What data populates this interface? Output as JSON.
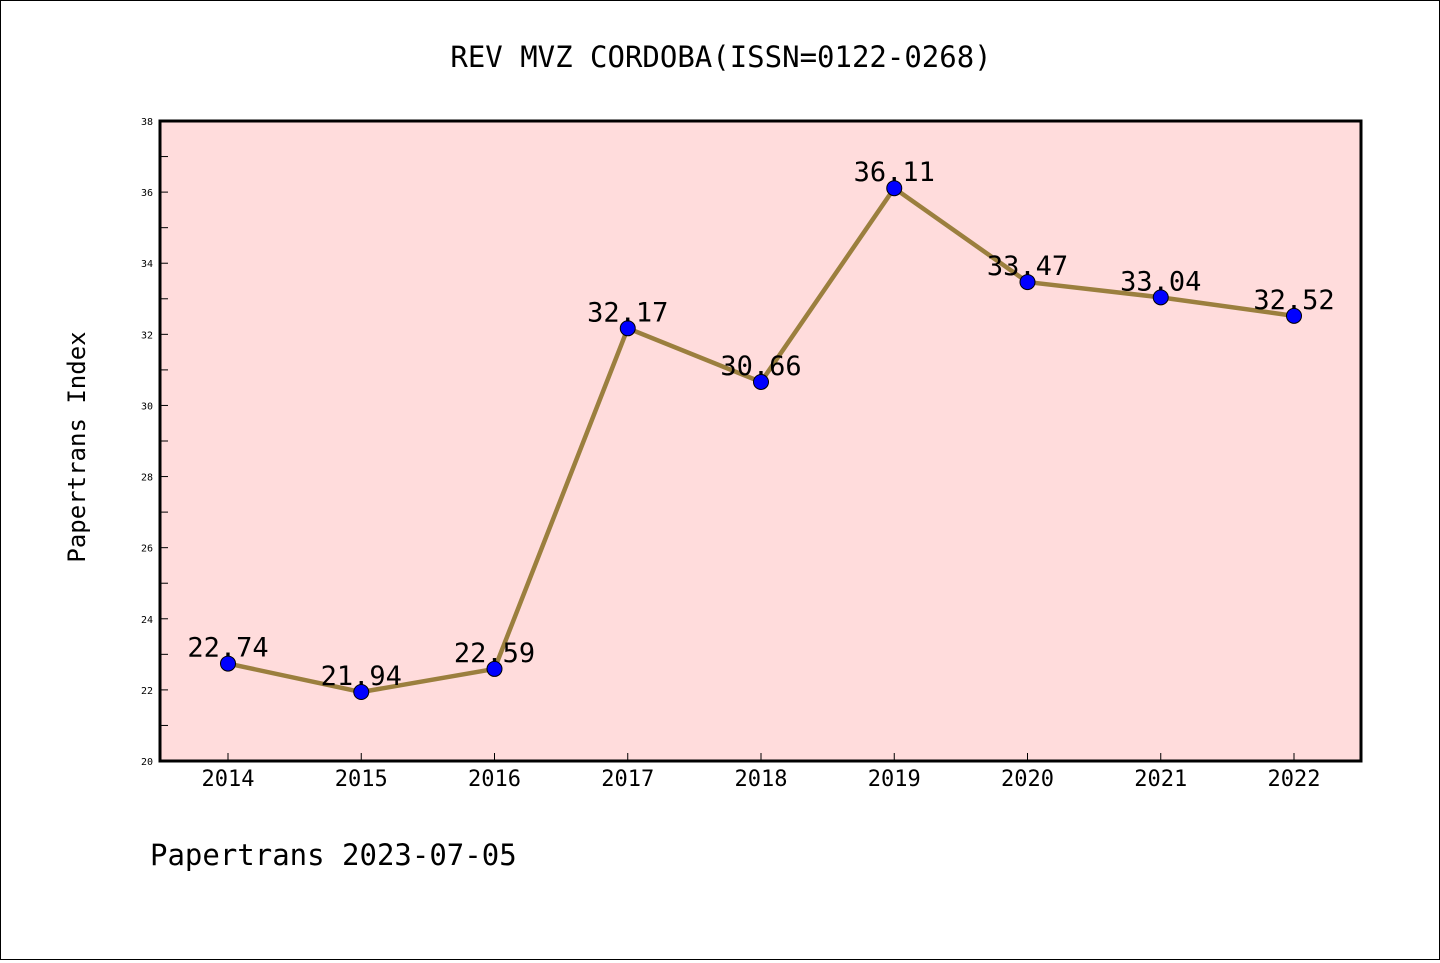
{
  "chart_data": {
    "type": "line",
    "title": "REV MVZ CORDOBA(ISSN=0122-0268)",
    "ylabel": "Papertrans Index",
    "xlabel": "",
    "footer": "Papertrans 2023-07-05",
    "categories": [
      "2014",
      "2015",
      "2016",
      "2017",
      "2018",
      "2019",
      "2020",
      "2021",
      "2022"
    ],
    "values": [
      22.74,
      21.94,
      22.59,
      32.17,
      30.66,
      36.11,
      33.47,
      33.04,
      32.52
    ],
    "value_labels": [
      "22.74",
      "21.94",
      "22.59",
      "32.17",
      "30.66",
      "36.11",
      "33.47",
      "33.04",
      "32.52"
    ],
    "ylim": [
      20,
      38
    ],
    "yticks": [
      "20",
      "22",
      "24",
      "26",
      "28",
      "30",
      "32",
      "34",
      "36",
      "38"
    ],
    "grid": false,
    "legend": "none",
    "colors": {
      "plot_background": "#ffdcdc",
      "line": "#9b7f3e",
      "marker": "#0000ff",
      "axis": "#000000"
    }
  }
}
